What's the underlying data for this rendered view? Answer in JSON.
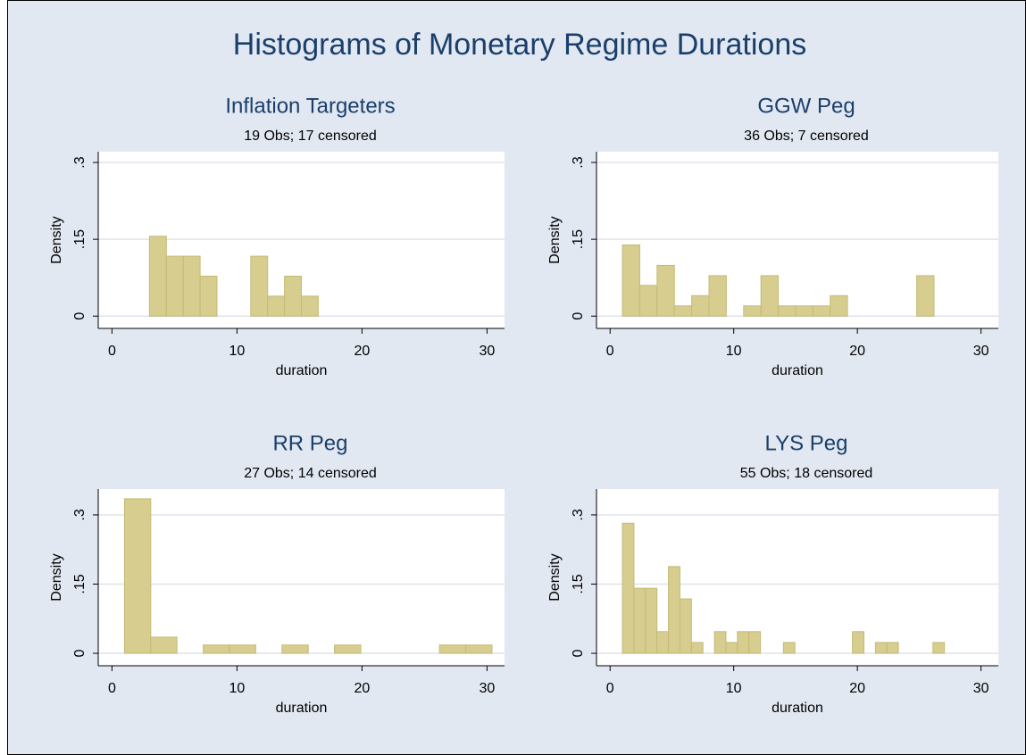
{
  "title": "Histograms of Monetary Regime Durations",
  "chart_data": [
    {
      "type": "histogram",
      "title": "Inflation Targeters",
      "subtitle": "19 Obs; 17 censored",
      "x_label": "duration",
      "y_label": "Density",
      "color": "#d6cd8e",
      "bins": [
        3,
        4.35,
        5.7,
        7.05,
        8.4,
        9.75,
        11.1,
        12.45,
        13.8,
        15.15,
        16.5
      ],
      "values": [
        0.156,
        0.117,
        0.117,
        0.078,
        0,
        0,
        0.117,
        0.039,
        0.078,
        0.039
      ],
      "xlim": [
        -1.1,
        31.4
      ],
      "xticks": [
        0,
        10,
        20,
        30
      ],
      "ylim": [
        -0.024,
        0.321
      ],
      "yticks": [
        0,
        {
          "value": 0.15,
          "label": ".15"
        },
        {
          "value": 0.3,
          "label": ".3"
        }
      ],
      "grid": true
    },
    {
      "type": "histogram",
      "title": "GGW Peg",
      "subtitle": "36 Obs; 7 censored",
      "x_label": "duration",
      "y_label": "Density",
      "color": "#d6cd8e",
      "bins": [
        1,
        2.4,
        3.8,
        5.2,
        6.6,
        8,
        9.4,
        10.8,
        12.2,
        13.6,
        15,
        16.4,
        17.8,
        19.2,
        20.6,
        22,
        23.4,
        24.8,
        26.2
      ],
      "values": [
        0.139,
        0.06,
        0.099,
        0.02,
        0.04,
        0.079,
        0,
        0.02,
        0.079,
        0.02,
        0.02,
        0.02,
        0.04,
        0,
        0,
        0,
        0,
        0.079
      ],
      "xlim": [
        -1.1,
        31.4
      ],
      "xticks": [
        0,
        10,
        20,
        30
      ],
      "ylim": [
        -0.024,
        0.321
      ],
      "yticks": [
        0,
        {
          "value": 0.15,
          "label": ".15"
        },
        {
          "value": 0.3,
          "label": ".3"
        }
      ],
      "grid": true
    },
    {
      "type": "histogram",
      "title": "RR Peg",
      "subtitle": "27 Obs; 14 censored",
      "x_label": "duration",
      "y_label": "Density",
      "color": "#d6cd8e",
      "bins": [
        1,
        3.1,
        5.2,
        7.3,
        9.4,
        11.5,
        13.6,
        15.7,
        17.8,
        19.9,
        22,
        24.1,
        26.2,
        28.3,
        30.4
      ],
      "values": [
        0.335,
        0.035,
        0,
        0.018,
        0.018,
        0,
        0.018,
        0,
        0.018,
        0,
        0,
        0,
        0.018,
        0.018
      ],
      "xlim": [
        -1.1,
        31.4
      ],
      "xticks": [
        0,
        10,
        20,
        30
      ],
      "ylim": [
        -0.027,
        0.356
      ],
      "yticks": [
        0,
        {
          "value": 0.15,
          "label": ".15"
        },
        {
          "value": 0.3,
          "label": ".3"
        }
      ],
      "grid": true
    },
    {
      "type": "histogram",
      "title": "LYS Peg",
      "subtitle": "55 Obs; 18 censored",
      "x_label": "duration",
      "y_label": "Density",
      "color": "#d6cd8e",
      "bins": [
        1,
        1.93,
        2.86,
        3.79,
        4.72,
        5.65,
        6.58,
        7.51,
        8.44,
        9.37,
        10.3,
        11.23,
        12.16,
        13.09,
        14.02,
        14.95,
        15.88,
        16.81,
        17.74,
        18.67,
        19.6,
        20.53,
        21.46,
        22.39,
        23.32,
        24.25,
        25.18,
        26.11,
        27.04
      ],
      "values": [
        0.282,
        0.141,
        0.141,
        0.047,
        0.188,
        0.118,
        0.0235,
        0,
        0.047,
        0.0235,
        0.047,
        0.047,
        0,
        0,
        0.0235,
        0,
        0,
        0,
        0,
        0,
        0.047,
        0,
        0.0235,
        0.0235,
        0,
        0,
        0,
        0.0235
      ],
      "xlim": [
        -1.1,
        31.4
      ],
      "xticks": [
        0,
        10,
        20,
        30
      ],
      "ylim": [
        -0.027,
        0.356
      ],
      "yticks": [
        0,
        {
          "value": 0.15,
          "label": ".15"
        },
        {
          "value": 0.3,
          "label": ".3"
        }
      ],
      "grid": true
    }
  ]
}
